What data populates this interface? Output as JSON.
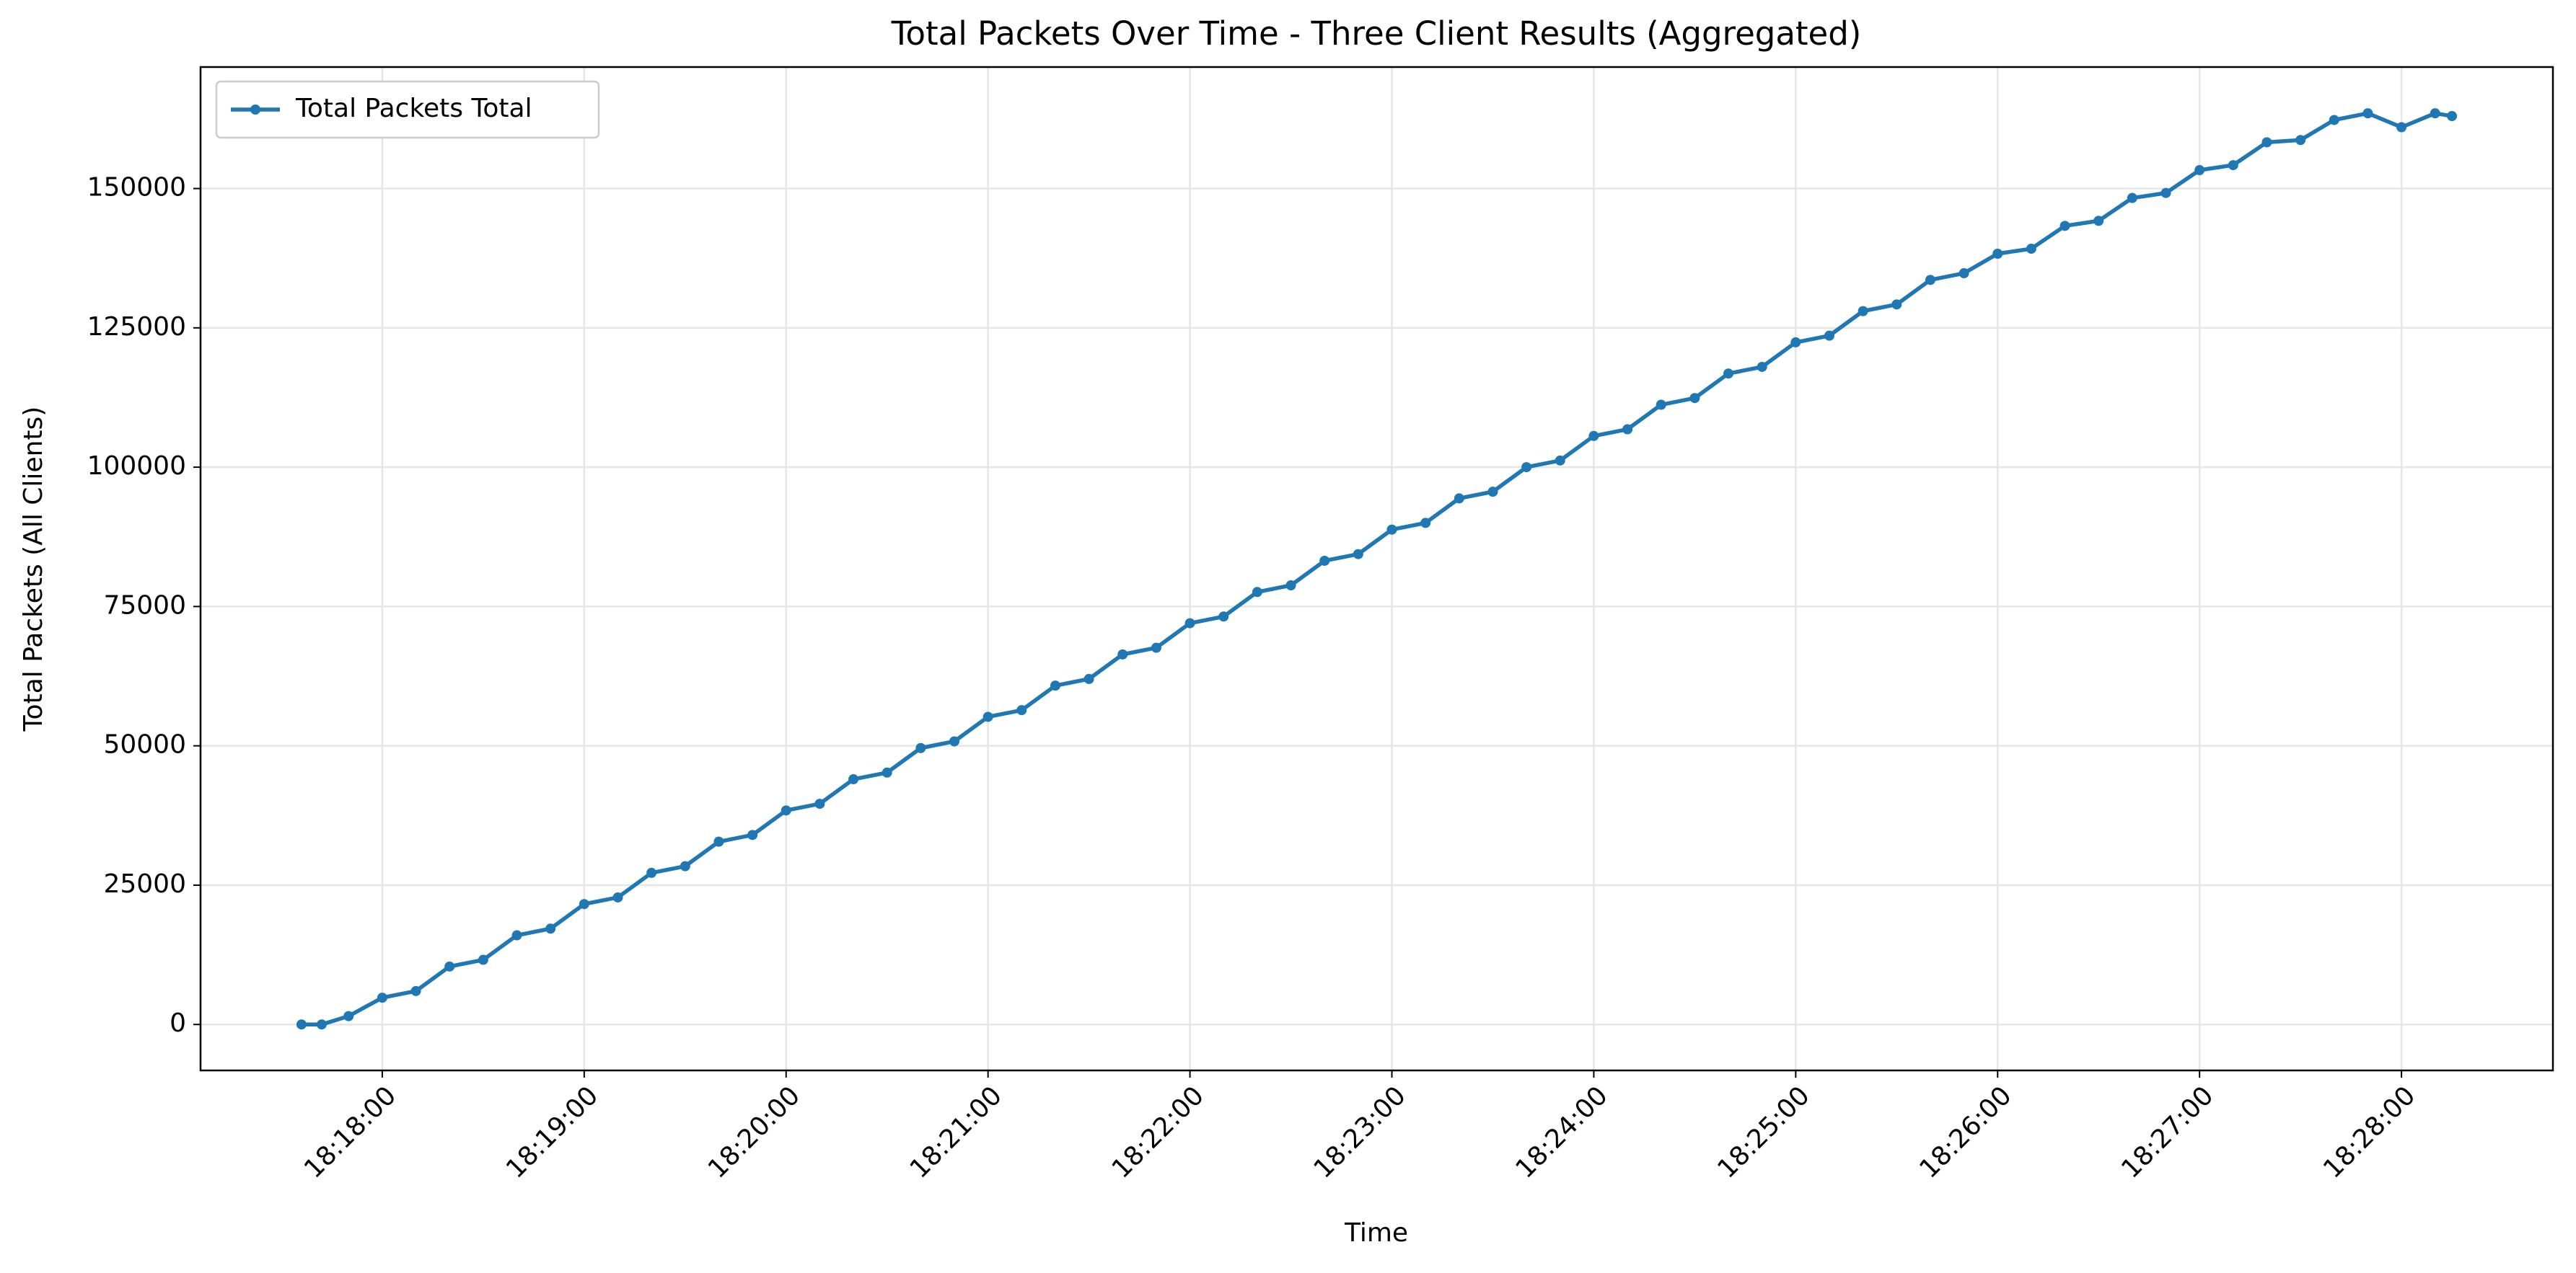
{
  "chart_data": {
    "type": "line",
    "title": "Total Packets Over Time - Three Client Results (Aggregated)",
    "x_label": "Time",
    "y_label": "Total Packets (All Clients)",
    "x": [
      "18:17:36",
      "18:17:42",
      "18:17:50",
      "18:18:00",
      "18:18:10",
      "18:18:20",
      "18:18:30",
      "18:18:40",
      "18:18:50",
      "18:19:00",
      "18:19:10",
      "18:19:20",
      "18:19:30",
      "18:19:40",
      "18:19:50",
      "18:20:00",
      "18:20:10",
      "18:20:20",
      "18:20:30",
      "18:20:40",
      "18:20:50",
      "18:21:00",
      "18:21:10",
      "18:21:20",
      "18:21:30",
      "18:21:40",
      "18:21:50",
      "18:22:00",
      "18:22:10",
      "18:22:20",
      "18:22:30",
      "18:22:40",
      "18:22:50",
      "18:23:00",
      "18:23:10",
      "18:23:20",
      "18:23:30",
      "18:23:40",
      "18:23:50",
      "18:24:00",
      "18:24:10",
      "18:24:20",
      "18:24:30",
      "18:24:40",
      "18:24:50",
      "18:25:00",
      "18:25:10",
      "18:25:20",
      "18:25:30",
      "18:25:40",
      "18:25:50",
      "18:26:00",
      "18:26:10",
      "18:26:20",
      "18:26:30",
      "18:26:40",
      "18:26:50",
      "18:27:00",
      "18:27:10",
      "18:27:20",
      "18:27:30",
      "18:27:40",
      "18:27:50",
      "18:28:00",
      "18:28:10",
      "18:28:15"
    ],
    "series": [
      {
        "name": "Total Packets Total",
        "color": "#1f77b4",
        "values": [
          0,
          0,
          1500,
          4800,
          6000,
          10400,
          11600,
          16000,
          17200,
          21600,
          22800,
          27200,
          28400,
          32800,
          34000,
          38400,
          39600,
          44000,
          45200,
          49600,
          50800,
          55200,
          56400,
          60800,
          62000,
          66400,
          67600,
          72000,
          73200,
          77600,
          78800,
          83200,
          84400,
          88800,
          90000,
          94400,
          95600,
          100000,
          101200,
          105600,
          106800,
          111200,
          112400,
          116800,
          118000,
          122400,
          123600,
          128000,
          129200,
          133600,
          134800,
          138300,
          139200,
          143300,
          144200,
          148300,
          149200,
          153300,
          154200,
          158300,
          158700,
          162300,
          163500,
          161000,
          163500,
          163000
        ]
      }
    ],
    "xlim": [
      "18:17:06",
      "18:28:45"
    ],
    "xticks": [
      "18:18:00",
      "18:19:00",
      "18:20:00",
      "18:21:00",
      "18:22:00",
      "18:23:00",
      "18:24:00",
      "18:25:00",
      "18:26:00",
      "18:27:00",
      "18:28:00"
    ],
    "ylim": [
      -8250,
      171800
    ],
    "yticks": [
      0,
      25000,
      50000,
      75000,
      100000,
      125000,
      150000
    ],
    "grid": true,
    "legend": "upper left"
  }
}
